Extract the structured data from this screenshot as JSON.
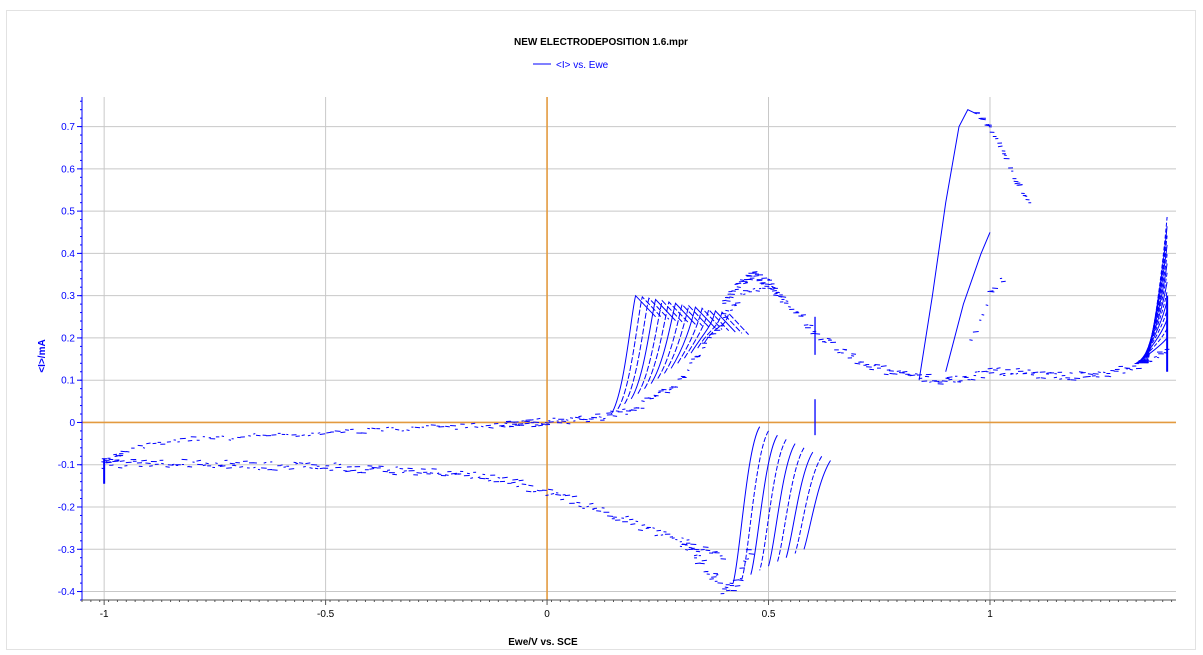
{
  "chart_data": {
    "type": "scatter",
    "title": "NEW ELECTRODEPOSITION 1.6.mpr",
    "xlabel": "Ewe/V vs. SCE",
    "ylabel": "<I>/mA",
    "xlim": [
      -1.05,
      1.42
    ],
    "ylim": [
      -0.42,
      0.77
    ],
    "x_ticks": [
      -1,
      -0.5,
      0,
      0.5,
      1
    ],
    "x_tick_labels": [
      "-1",
      "-0.5",
      "0",
      "0.5",
      "1"
    ],
    "y_ticks": [
      -0.4,
      -0.3,
      -0.2,
      -0.1,
      0,
      0.1,
      0.2,
      0.3,
      0.4,
      0.5,
      0.6,
      0.7
    ],
    "y_tick_labels": [
      "-0.4",
      "-0.3",
      "-0.2",
      "-0.1",
      "0",
      "0.1",
      "0.2",
      "0.3",
      "0.4",
      "0.5",
      "0.6",
      "0.7"
    ],
    "grid": true,
    "legend": {
      "placement": "top-center"
    },
    "colors": {
      "series": "#0000ff",
      "zero_axes": "#e39a3f",
      "grid": "#c8c8c8"
    },
    "series": [
      {
        "name": "<I> vs. Ewe",
        "color": "#0000ff",
        "anodic_background": {
          "x": [
            -0.1,
            0.0,
            0.05,
            0.1,
            0.15,
            0.2,
            0.25,
            0.3,
            0.35,
            0.4,
            0.45,
            0.5,
            0.55,
            0.6,
            0.65,
            0.7,
            0.75,
            0.8,
            0.85,
            0.9,
            0.95,
            1.0,
            1.05,
            1.1,
            1.15,
            1.2,
            1.25,
            1.3,
            1.35,
            1.4
          ],
          "y": [
            -0.005,
            0.0,
            0.003,
            0.01,
            0.02,
            0.035,
            0.06,
            0.1,
            0.17,
            0.25,
            0.31,
            0.33,
            0.28,
            0.22,
            0.18,
            0.15,
            0.125,
            0.115,
            0.105,
            0.1,
            0.105,
            0.12,
            0.12,
            0.115,
            0.11,
            0.11,
            0.115,
            0.125,
            0.14,
            0.17
          ]
        },
        "cathodic_background": {
          "x": [
            -1.0,
            -0.9,
            -0.8,
            -0.7,
            -0.6,
            -0.5,
            -0.4,
            -0.3,
            -0.2,
            -0.1,
            0.0,
            0.05,
            0.1,
            0.15,
            0.2,
            0.25,
            0.3,
            0.35,
            0.4
          ],
          "y": [
            -0.1,
            -0.095,
            -0.097,
            -0.1,
            -0.103,
            -0.105,
            -0.11,
            -0.115,
            -0.12,
            -0.135,
            -0.165,
            -0.18,
            -0.2,
            -0.22,
            -0.24,
            -0.26,
            -0.28,
            -0.3,
            -0.32
          ]
        },
        "return_background": {
          "x": [
            -1.0,
            -0.9,
            -0.8,
            -0.7,
            -0.6,
            -0.5,
            -0.4,
            -0.3,
            -0.2,
            -0.1,
            0.0
          ],
          "y": [
            -0.09,
            -0.05,
            -0.04,
            -0.035,
            -0.03,
            -0.025,
            -0.018,
            -0.013,
            -0.01,
            -0.005,
            0.0
          ]
        },
        "anodic_scan_onsets_x": [
          0.145,
          0.16,
          0.175,
          0.19,
          0.205,
          0.22,
          0.235,
          0.25,
          0.265,
          0.28,
          0.295,
          0.31,
          0.325,
          0.34,
          0.355
        ],
        "anodic_scan_peak_y": 0.3,
        "cathodic_scan_onsets_x": [
          0.42,
          0.44,
          0.46,
          0.48,
          0.5,
          0.52,
          0.54,
          0.56,
          0.58
        ],
        "cathodic_scan_peak_y": -0.3,
        "oxidation_peak": {
          "x": [
            0.84,
            0.87,
            0.9,
            0.93,
            0.95,
            0.97,
            1.0,
            1.03,
            1.06,
            1.09
          ],
          "y": [
            0.1,
            0.3,
            0.52,
            0.7,
            0.74,
            0.73,
            0.7,
            0.64,
            0.57,
            0.52
          ]
        },
        "secondary_oxidation": {
          "x": [
            0.9,
            0.94,
            0.98,
            1.0
          ],
          "y": [
            0.12,
            0.28,
            0.4,
            0.45
          ]
        },
        "vertex_x": 1.4,
        "vertex_max_y": 0.5,
        "spike_x": 0.605
      }
    ]
  }
}
